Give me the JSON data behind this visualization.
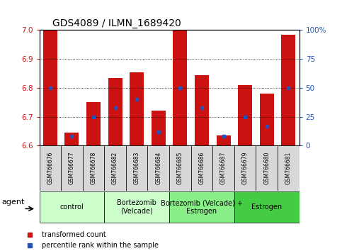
{
  "title": "GDS4089 / ILMN_1689420",
  "samples": [
    "GSM766676",
    "GSM766677",
    "GSM766678",
    "GSM766682",
    "GSM766683",
    "GSM766684",
    "GSM766685",
    "GSM766686",
    "GSM766687",
    "GSM766679",
    "GSM766680",
    "GSM766681"
  ],
  "transformed_counts": [
    7.0,
    6.645,
    6.75,
    6.835,
    6.855,
    6.72,
    7.0,
    6.845,
    6.635,
    6.81,
    6.78,
    6.985
  ],
  "percentile_ranks": [
    50,
    8,
    25,
    33,
    40,
    12,
    50,
    33,
    8,
    25,
    17,
    50
  ],
  "ylim_left": [
    6.6,
    7.0
  ],
  "ylim_right": [
    0,
    100
  ],
  "yticks_left": [
    6.6,
    6.7,
    6.8,
    6.9,
    7.0
  ],
  "yticks_right": [
    0,
    25,
    50,
    75,
    100
  ],
  "ytick_right_labels": [
    "0",
    "25",
    "50",
    "75",
    "100%"
  ],
  "bar_color": "#cc1111",
  "percentile_color": "#2255bb",
  "bar_width": 0.65,
  "groups": [
    {
      "label": "control",
      "start": 0,
      "end": 2,
      "color": "#ccffcc"
    },
    {
      "label": "Bortezomib\n(Velcade)",
      "start": 3,
      "end": 5,
      "color": "#ccffcc"
    },
    {
      "label": "Bortezomib (Velcade) +\nEstrogen",
      "start": 6,
      "end": 8,
      "color": "#88ee88"
    },
    {
      "label": "Estrogen",
      "start": 9,
      "end": 11,
      "color": "#44cc44"
    }
  ],
  "legend_items": [
    {
      "label": "transformed count",
      "color": "#cc1111"
    },
    {
      "label": "percentile rank within the sample",
      "color": "#2255bb"
    }
  ],
  "title_fontsize": 10,
  "sample_fontsize": 5.5,
  "group_fontsize": 7,
  "ytick_fontsize": 7.5,
  "legend_fontsize": 7
}
